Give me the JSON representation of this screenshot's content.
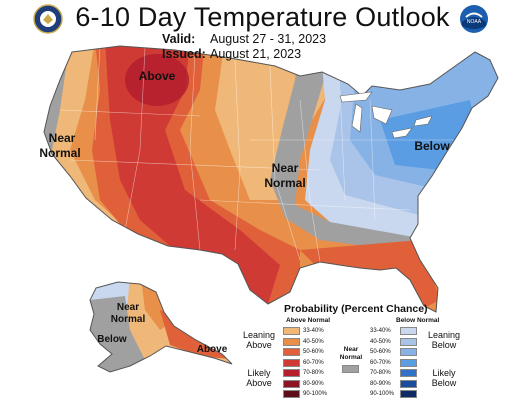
{
  "header": {
    "title": "6-10 Day Temperature Outlook",
    "valid_label": "Valid:",
    "valid_value": "August 27 - 31, 2023",
    "issued_label": "Issued:",
    "issued_value": "August 21, 2023"
  },
  "logos": {
    "left": "doc-seal-icon",
    "right": "noaa-logo-icon",
    "noaa_text": "NOAA"
  },
  "map_labels": {
    "above_nw": "Above",
    "near_west_1": "Near",
    "near_west_2": "Normal",
    "near_mid_1": "Near",
    "near_mid_2": "Normal",
    "below_ne": "Below",
    "ak_near_1": "Near",
    "ak_near_2": "Normal",
    "ak_below": "Below",
    "ak_above": "Above"
  },
  "legend": {
    "title": "Probability (Percent Chance)",
    "above_header": "Above Normal",
    "below_header": "Below Normal",
    "near_label_1": "Near",
    "near_label_2": "Normal",
    "leaning_above_1": "Leaning",
    "leaning_above_2": "Above",
    "likely_above_1": "Likely",
    "likely_above_2": "Above",
    "leaning_below_1": "Leaning",
    "leaning_below_2": "Below",
    "likely_below_1": "Likely",
    "likely_below_2": "Below",
    "above_bins": [
      {
        "label": "33-40%",
        "color": "#f0b878"
      },
      {
        "label": "40-50%",
        "color": "#e8904a"
      },
      {
        "label": "50-60%",
        "color": "#e0603a"
      },
      {
        "label": "60-70%",
        "color": "#cf3a34"
      },
      {
        "label": "70-80%",
        "color": "#b41e2e"
      },
      {
        "label": "80-90%",
        "color": "#8c1424"
      },
      {
        "label": "90-100%",
        "color": "#5e0c18"
      }
    ],
    "below_bins": [
      {
        "label": "33-40%",
        "color": "#c9d8ef"
      },
      {
        "label": "40-50%",
        "color": "#a9c4e8"
      },
      {
        "label": "50-60%",
        "color": "#86b2e6"
      },
      {
        "label": "60-70%",
        "color": "#5b9de2"
      },
      {
        "label": "70-80%",
        "color": "#2f72c8"
      },
      {
        "label": "80-90%",
        "color": "#1b4d9e"
      },
      {
        "label": "90-100%",
        "color": "#102a66"
      }
    ],
    "near_color": "#a0a0a0"
  }
}
